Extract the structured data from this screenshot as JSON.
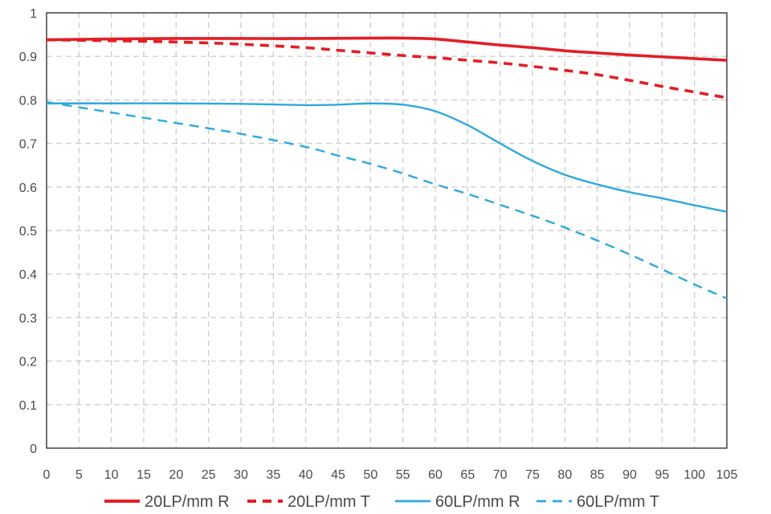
{
  "chart_data": {
    "type": "line",
    "title": "",
    "xlabel": "",
    "ylabel": "",
    "xlim": [
      0,
      105
    ],
    "ylim": [
      0,
      1
    ],
    "x_ticks": [
      0,
      5,
      10,
      15,
      20,
      25,
      30,
      35,
      40,
      45,
      50,
      55,
      60,
      65,
      70,
      75,
      80,
      85,
      90,
      95,
      100,
      105
    ],
    "y_ticks": [
      0,
      0.1,
      0.2,
      0.3,
      0.4,
      0.5,
      0.6,
      0.7,
      0.8,
      0.9,
      1
    ],
    "x_tick_labels": [
      "0",
      "5",
      "10",
      "15",
      "20",
      "25",
      "30",
      "35",
      "40",
      "45",
      "50",
      "55",
      "60",
      "65",
      "70",
      "75",
      "80",
      "85",
      "90",
      "95",
      "100",
      "105"
    ],
    "y_tick_labels": [
      "0",
      "0.1",
      "0.2",
      "0.3",
      "0.4",
      "0.5",
      "0.6",
      "0.7",
      "0.8",
      "0.9",
      "1"
    ],
    "grid": true,
    "legend_position": "bottom",
    "series": [
      {
        "name": "20LP/mm R",
        "color": "#e31e24",
        "style": "solid",
        "x": [
          0,
          10,
          20,
          30,
          40,
          50,
          55,
          60,
          65,
          70,
          75,
          80,
          85,
          90,
          95,
          100,
          105
        ],
        "values": [
          0.938,
          0.94,
          0.941,
          0.941,
          0.941,
          0.942,
          0.942,
          0.94,
          0.933,
          0.926,
          0.92,
          0.913,
          0.908,
          0.903,
          0.899,
          0.895,
          0.891
        ]
      },
      {
        "name": "20LP/mm T",
        "color": "#e31e24",
        "style": "dashed",
        "x": [
          0,
          10,
          20,
          30,
          40,
          45,
          50,
          55,
          60,
          65,
          70,
          75,
          80,
          85,
          90,
          95,
          100,
          105
        ],
        "values": [
          0.938,
          0.936,
          0.933,
          0.928,
          0.92,
          0.914,
          0.908,
          0.902,
          0.897,
          0.891,
          0.885,
          0.877,
          0.868,
          0.858,
          0.845,
          0.831,
          0.818,
          0.805
        ]
      },
      {
        "name": "60LP/mm R",
        "color": "#2ea8dc",
        "style": "solid",
        "x": [
          0,
          10,
          20,
          30,
          40,
          45,
          50,
          55,
          60,
          65,
          70,
          75,
          80,
          85,
          90,
          95,
          100,
          105
        ],
        "values": [
          0.792,
          0.792,
          0.792,
          0.791,
          0.788,
          0.789,
          0.792,
          0.789,
          0.774,
          0.742,
          0.7,
          0.66,
          0.628,
          0.606,
          0.588,
          0.574,
          0.558,
          0.543
        ]
      },
      {
        "name": "60LP/mm T",
        "color": "#2ea8dc",
        "style": "dashed",
        "x": [
          0,
          10,
          20,
          30,
          40,
          45,
          50,
          55,
          60,
          65,
          70,
          75,
          80,
          85,
          90,
          95,
          100,
          105
        ],
        "values": [
          0.795,
          0.771,
          0.747,
          0.722,
          0.692,
          0.672,
          0.653,
          0.631,
          0.606,
          0.584,
          0.559,
          0.534,
          0.507,
          0.477,
          0.445,
          0.411,
          0.376,
          0.344
        ]
      }
    ]
  }
}
